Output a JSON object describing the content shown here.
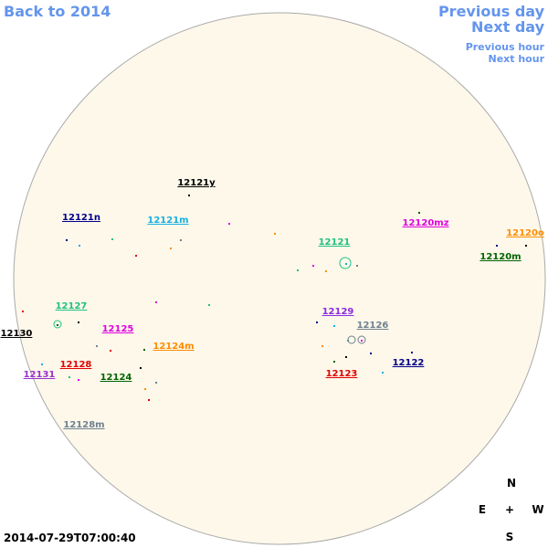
{
  "nav": {
    "back": "Back to 2014",
    "previous_day": "Previous day",
    "next_day": "Next day",
    "previous_hour": "Previous hour",
    "next_hour": "Next hour"
  },
  "regions": [
    {
      "label": "12121y",
      "color": "#000000"
    },
    {
      "label": "12121n",
      "color": "#00008b"
    },
    {
      "label": "12121m",
      "color": "#1ab0e0"
    },
    {
      "label": "12120mz",
      "color": "#e000e0"
    },
    {
      "label": "12120o",
      "color": "#ff8c00"
    },
    {
      "label": "12121",
      "color": "#20c080"
    },
    {
      "label": "12120m",
      "color": "#006400"
    },
    {
      "label": "12127",
      "color": "#20c080"
    },
    {
      "label": "12130",
      "color": "#000000"
    },
    {
      "label": "12129",
      "color": "#8a2be2"
    },
    {
      "label": "12126",
      "color": "#708090"
    },
    {
      "label": "12125",
      "color": "#e000e0"
    },
    {
      "label": "12124m",
      "color": "#ff8c00"
    },
    {
      "label": "12122",
      "color": "#00008b"
    },
    {
      "label": "12131",
      "color": "#9932cc"
    },
    {
      "label": "12128",
      "color": "#e00000"
    },
    {
      "label": "12124",
      "color": "#006400"
    },
    {
      "label": "12123",
      "color": "#e00000"
    },
    {
      "label": "12128m",
      "color": "#708090"
    }
  ],
  "compass": {
    "n": "N",
    "e": "E",
    "center": "+",
    "w": "W",
    "s": "S"
  },
  "timestamp": "2014-07-29T07:00:40"
}
